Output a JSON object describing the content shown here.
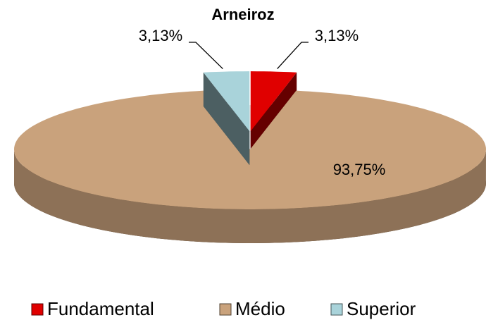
{
  "chart_data": {
    "type": "pie",
    "title": "Arneiroz",
    "categories": [
      "Fundamental",
      "Médio",
      "Superior"
    ],
    "values": [
      3.13,
      93.75,
      3.13
    ],
    "value_labels": [
      "3,13%",
      "93,75%",
      "3,13%"
    ],
    "colors": [
      "#e00000",
      "#c9a27c",
      "#a9d3da"
    ],
    "legend": "bottom"
  }
}
